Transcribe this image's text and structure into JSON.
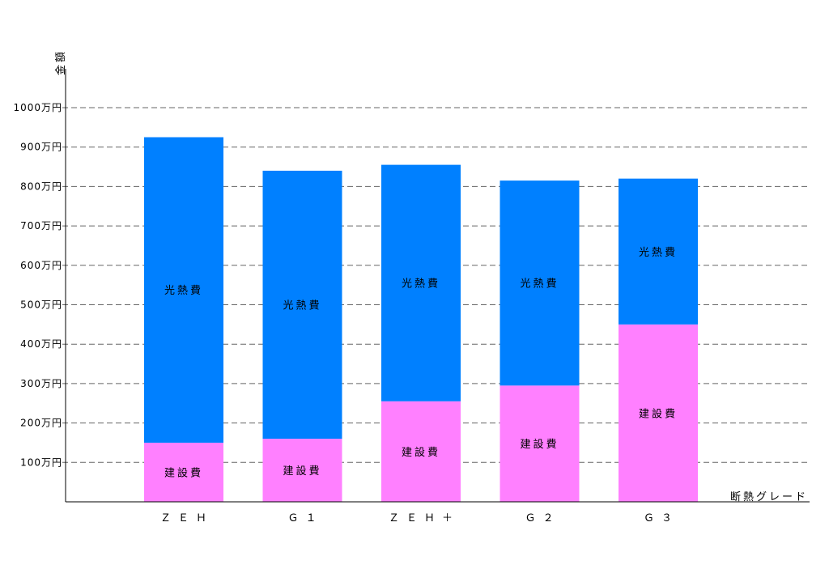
{
  "chart_data": {
    "type": "bar",
    "stacked": true,
    "title": "",
    "xlabel": "断熱グレード",
    "ylabel": "金額",
    "categories": [
      "ＺＥＨ",
      "Ｇ１",
      "ＺＥＨ＋",
      "Ｇ２",
      "Ｇ３"
    ],
    "series": [
      {
        "name": "建設費",
        "color": "#ff80ff",
        "values": [
          150,
          160,
          255,
          295,
          450
        ],
        "labels": [
          "建設費",
          "建設費",
          "建設費",
          "建設費",
          "建設費"
        ]
      },
      {
        "name": "光熱費",
        "color": "#0080ff",
        "values": [
          775,
          680,
          600,
          520,
          370
        ],
        "labels": [
          "光熱費",
          "光熱費",
          "光熱費",
          "光熱費",
          "光熱費"
        ]
      }
    ],
    "ylim": [
      0,
      1000
    ],
    "yticks": [
      100,
      200,
      300,
      400,
      500,
      600,
      700,
      800,
      900,
      1000
    ],
    "ytick_labels": [
      "100万円",
      "200万円",
      "300万円",
      "400万円",
      "500万円",
      "600万円",
      "700万円",
      "800万円",
      "900万円",
      "1000万円"
    ],
    "grid": true,
    "legend": "none"
  }
}
